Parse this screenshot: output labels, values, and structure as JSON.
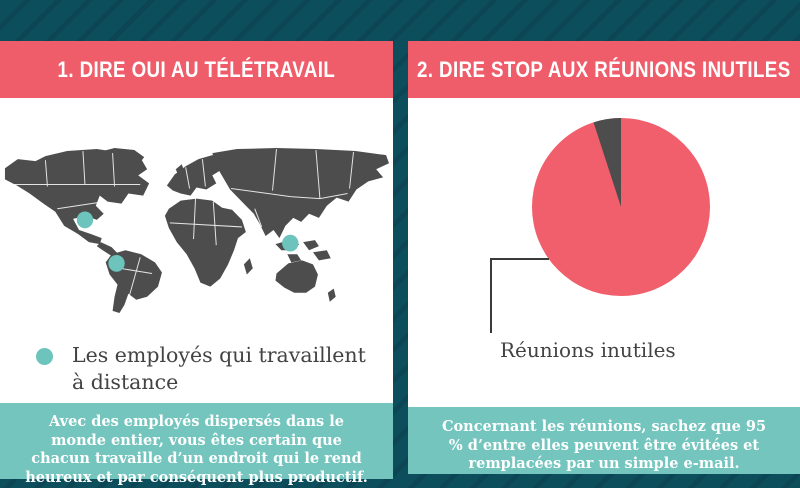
{
  "colors": {
    "bg": "#0d4e5d",
    "header_pink": "#f05d6a",
    "panel_white": "#ffffff",
    "footer_teal": "#73c5be",
    "accent_teal": "#6cc4bc",
    "map_gray": "#4d4d4d",
    "pie_pink": "#f15f6c",
    "pie_gray": "#4d4d4d",
    "text_dark": "#434343"
  },
  "left_panel": {
    "header": "1. DIRE OUI AU TÉLÉTRAVAIL",
    "legend_label": "Les employés qui travaillent à distance",
    "map_marker_count": 3,
    "footer": "Avec des employés dispersés dans le monde entier, vous êtes certain que chacun travaille d’un endroit qui le rend heureux et par conséquent plus productif."
  },
  "right_panel": {
    "header": "2. DIRE STOP AUX RÉUNIONS INUTILES",
    "pie_label": "Réunions inutiles",
    "footer": "Concernant les réunions, sachez que 95 % d’entre elles peuvent être évitées et remplacées par un simple e-mail."
  },
  "chart_data": {
    "type": "pie",
    "title": "",
    "slices": [
      {
        "label": "Réunions inutiles",
        "value": 95,
        "color": "#f15f6c"
      },
      {
        "label": "",
        "value": 5,
        "color": "#4d4d4d"
      }
    ],
    "legend_position": "callout-bottom-left"
  }
}
